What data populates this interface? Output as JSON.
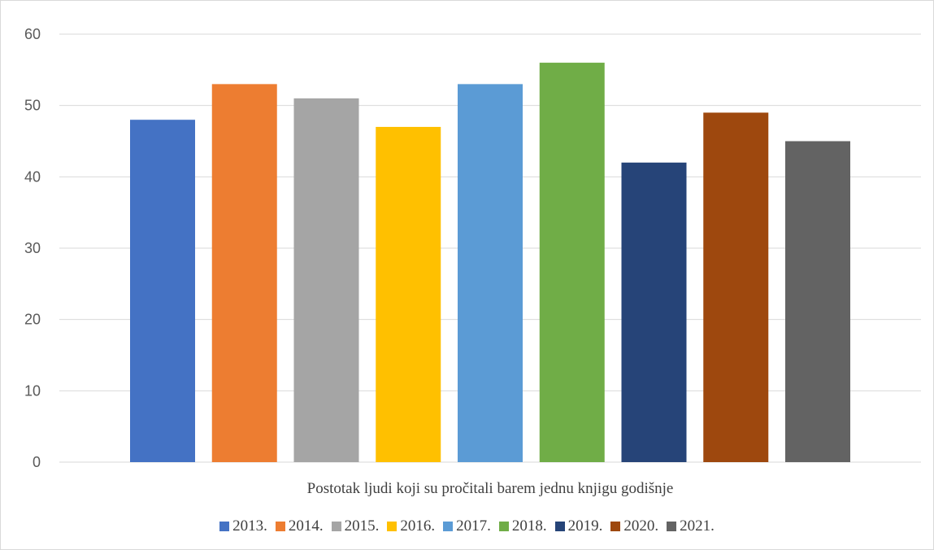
{
  "chart_data": {
    "type": "bar",
    "category_label": "Postotak ljudi koji su pročitali barem jednu knjigu godišnje",
    "series": [
      {
        "name": "2013.",
        "value": 48,
        "color": "#4472C4"
      },
      {
        "name": "2014.",
        "value": 53,
        "color": "#ED7D31"
      },
      {
        "name": "2015.",
        "value": 51,
        "color": "#A5A5A5"
      },
      {
        "name": "2016.",
        "value": 47,
        "color": "#FFC000"
      },
      {
        "name": "2017.",
        "value": 53,
        "color": "#5B9BD5"
      },
      {
        "name": "2018.",
        "value": 56,
        "color": "#70AD47"
      },
      {
        "name": "2019.",
        "value": 42,
        "color": "#264478"
      },
      {
        "name": "2020.",
        "value": 49,
        "color": "#9E480E"
      },
      {
        "name": "2021.",
        "value": 45,
        "color": "#636363"
      }
    ],
    "ylim": [
      0,
      60
    ],
    "yticks": [
      0,
      10,
      20,
      30,
      40,
      50,
      60
    ],
    "grid": true,
    "legend_position": "bottom"
  }
}
